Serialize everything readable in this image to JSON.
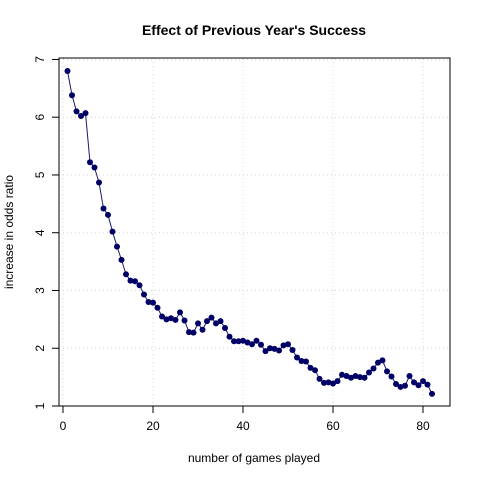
{
  "chart_data": {
    "type": "line",
    "title": "Effect of Previous Year's Success",
    "xlabel": "number of games played",
    "ylabel": "increase in odds ratio",
    "xlim": [
      0,
      84
    ],
    "ylim": [
      1,
      7
    ],
    "x_ticks": [
      0,
      20,
      40,
      60,
      80
    ],
    "y_ticks": [
      1,
      2,
      3,
      4,
      5,
      6,
      7
    ],
    "grid": true,
    "line_color": "#1a1a6e",
    "point_color": "#000066",
    "x": [
      1,
      2,
      3,
      4,
      5,
      6,
      7,
      8,
      9,
      10,
      11,
      12,
      13,
      14,
      15,
      16,
      17,
      18,
      19,
      20,
      21,
      22,
      23,
      24,
      25,
      26,
      27,
      28,
      29,
      30,
      31,
      32,
      33,
      34,
      35,
      36,
      37,
      38,
      39,
      40,
      41,
      42,
      43,
      44,
      45,
      46,
      47,
      48,
      49,
      50,
      51,
      52,
      53,
      54,
      55,
      56,
      57,
      58,
      59,
      60,
      61,
      62,
      63,
      64,
      65,
      66,
      67,
      68,
      69,
      70,
      71,
      72,
      73,
      74,
      75,
      76,
      77,
      78,
      79,
      80,
      81,
      82
    ],
    "y": [
      6.8,
      6.38,
      6.1,
      6.02,
      6.07,
      5.22,
      5.13,
      4.87,
      4.42,
      4.31,
      4.02,
      3.76,
      3.53,
      3.28,
      3.17,
      3.16,
      3.09,
      2.93,
      2.8,
      2.79,
      2.7,
      2.55,
      2.5,
      2.52,
      2.49,
      2.62,
      2.48,
      2.28,
      2.27,
      2.43,
      2.32,
      2.47,
      2.53,
      2.43,
      2.47,
      2.35,
      2.2,
      2.12,
      2.12,
      2.13,
      2.1,
      2.07,
      2.13,
      2.06,
      1.95,
      2.0,
      1.99,
      1.96,
      2.05,
      2.07,
      1.97,
      1.84,
      1.78,
      1.77,
      1.66,
      1.62,
      1.47,
      1.4,
      1.41,
      1.39,
      1.43,
      1.54,
      1.52,
      1.49,
      1.52,
      1.5,
      1.49,
      1.58,
      1.65,
      1.75,
      1.79,
      1.6,
      1.51,
      1.38,
      1.33,
      1.35,
      1.52,
      1.41,
      1.36,
      1.43,
      1.37,
      1.21
    ]
  }
}
